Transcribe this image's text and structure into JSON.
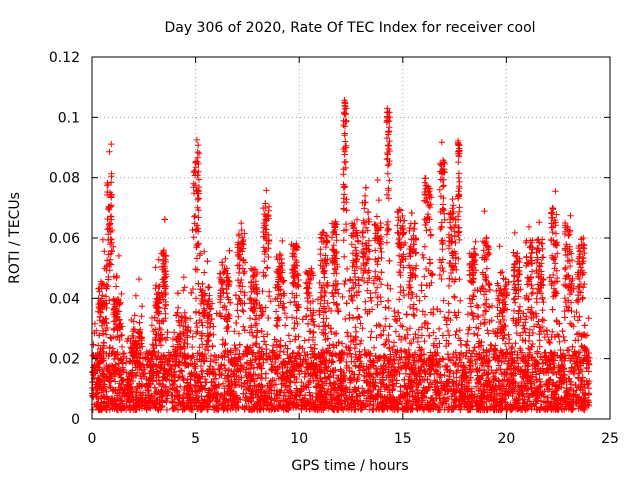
{
  "chart_data": {
    "type": "scatter",
    "title": "Day 306 of 2020, Rate Of TEC Index for receiver cool",
    "xlabel": "GPS time / hours",
    "ylabel": "ROTI / TECUs",
    "xlim": [
      0,
      25
    ],
    "ylim": [
      0,
      0.12
    ],
    "xticks": [
      0,
      5,
      10,
      15,
      20,
      25
    ],
    "xtick_labels": [
      "0",
      "5",
      "10",
      "15",
      "20",
      "25"
    ],
    "yticks": [
      0,
      0.02,
      0.04,
      0.06,
      0.08,
      0.1,
      0.12
    ],
    "ytick_labels": [
      "0",
      "0.02",
      "0.04",
      "0.06",
      "0.08",
      "0.1",
      "0.12"
    ],
    "grid": true,
    "marker": "+",
    "series": [
      {
        "name": "ROTI",
        "color": "#ff0000",
        "data_extent": [
          0,
          24
        ],
        "baseline": [
          0.003,
          0.015
        ],
        "peaks": [
          {
            "x": 0.5,
            "y": 0.045,
            "w": 0.35
          },
          {
            "x": 0.85,
            "y": 0.082,
            "w": 0.2
          },
          {
            "x": 1.2,
            "y": 0.04,
            "w": 0.3
          },
          {
            "x": 2.2,
            "y": 0.03,
            "w": 0.4
          },
          {
            "x": 3.2,
            "y": 0.045,
            "w": 0.3
          },
          {
            "x": 3.5,
            "y": 0.056,
            "w": 0.15
          },
          {
            "x": 4.3,
            "y": 0.035,
            "w": 0.4
          },
          {
            "x": 5.05,
            "y": 0.089,
            "w": 0.25
          },
          {
            "x": 5.5,
            "y": 0.045,
            "w": 0.4
          },
          {
            "x": 6.4,
            "y": 0.05,
            "w": 0.4
          },
          {
            "x": 7.2,
            "y": 0.063,
            "w": 0.3
          },
          {
            "x": 7.8,
            "y": 0.05,
            "w": 0.3
          },
          {
            "x": 8.4,
            "y": 0.072,
            "w": 0.25
          },
          {
            "x": 9.1,
            "y": 0.055,
            "w": 0.3
          },
          {
            "x": 9.8,
            "y": 0.058,
            "w": 0.3
          },
          {
            "x": 10.5,
            "y": 0.05,
            "w": 0.3
          },
          {
            "x": 11.2,
            "y": 0.062,
            "w": 0.3
          },
          {
            "x": 11.7,
            "y": 0.065,
            "w": 0.2
          },
          {
            "x": 12.2,
            "y": 0.106,
            "w": 0.12
          },
          {
            "x": 12.7,
            "y": 0.065,
            "w": 0.3
          },
          {
            "x": 13.2,
            "y": 0.072,
            "w": 0.3
          },
          {
            "x": 13.8,
            "y": 0.065,
            "w": 0.3
          },
          {
            "x": 14.3,
            "y": 0.104,
            "w": 0.12
          },
          {
            "x": 14.9,
            "y": 0.07,
            "w": 0.3
          },
          {
            "x": 15.5,
            "y": 0.065,
            "w": 0.3
          },
          {
            "x": 16.2,
            "y": 0.08,
            "w": 0.3
          },
          {
            "x": 16.9,
            "y": 0.086,
            "w": 0.2
          },
          {
            "x": 17.4,
            "y": 0.07,
            "w": 0.3
          },
          {
            "x": 17.7,
            "y": 0.093,
            "w": 0.06
          },
          {
            "x": 18.4,
            "y": 0.055,
            "w": 0.3
          },
          {
            "x": 19.0,
            "y": 0.06,
            "w": 0.3
          },
          {
            "x": 19.8,
            "y": 0.045,
            "w": 0.4
          },
          {
            "x": 20.5,
            "y": 0.055,
            "w": 0.3
          },
          {
            "x": 21.1,
            "y": 0.06,
            "w": 0.3
          },
          {
            "x": 21.6,
            "y": 0.06,
            "w": 0.3
          },
          {
            "x": 22.3,
            "y": 0.07,
            "w": 0.25
          },
          {
            "x": 23.0,
            "y": 0.065,
            "w": 0.3
          },
          {
            "x": 23.6,
            "y": 0.06,
            "w": 0.3
          }
        ]
      }
    ]
  }
}
